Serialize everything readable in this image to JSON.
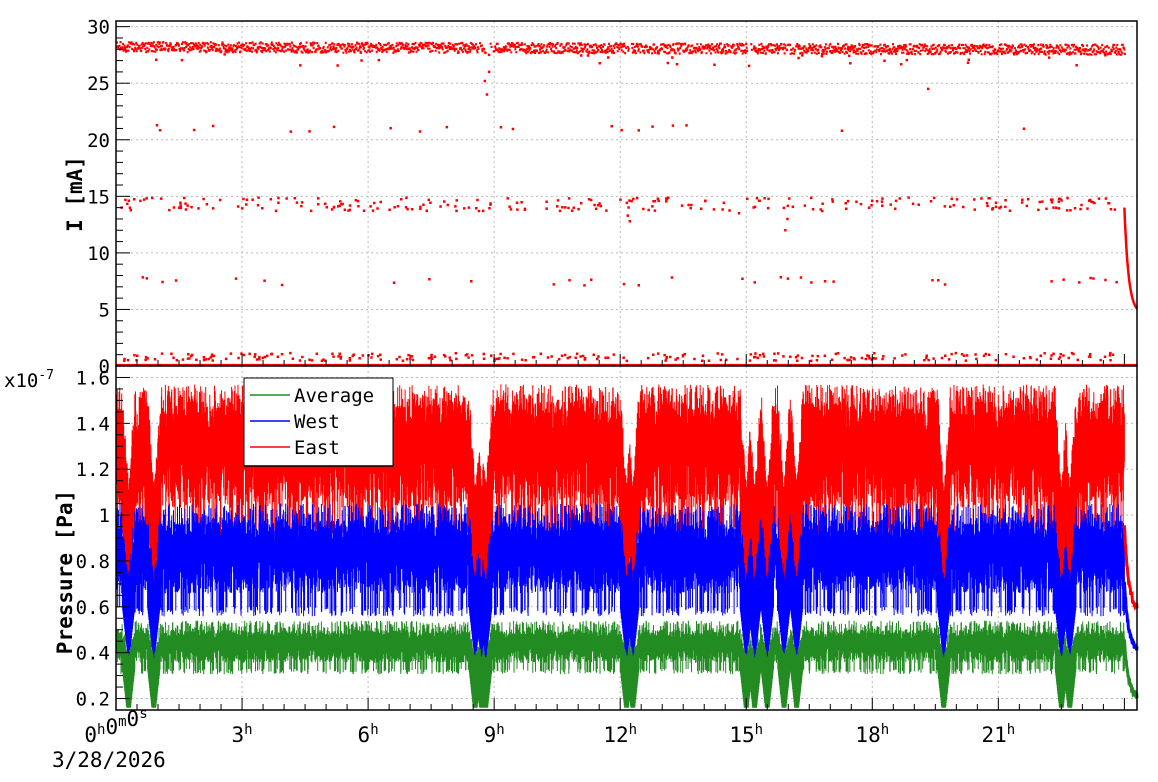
{
  "chart_data": [
    {
      "type": "scatter",
      "ylabel": "I [mA]",
      "ylim": [
        0,
        30.5
      ],
      "yticks": [
        "0",
        "5",
        "10",
        "15",
        "20",
        "25",
        "30"
      ],
      "grid": true,
      "x_unit": "hours",
      "xlim": [
        0,
        24.3
      ],
      "series": [
        {
          "color": "#ff0000",
          "description_levels": [
            28,
            14.5,
            7.5,
            0.8,
            0
          ],
          "segments": [
            {
              "x": [
                0.0,
                8.6
              ],
              "level": 28.2
            },
            {
              "x": [
                8.6,
                9.0
              ],
              "level": 27.5
            },
            {
              "x": [
                9.0,
                24.0
              ],
              "level": 28.0
            }
          ],
          "decay": {
            "x": [
              24.0,
              24.3
            ],
            "y": [
              14,
              4.6
            ]
          }
        }
      ]
    },
    {
      "type": "line",
      "ylabel": "Pressure [Pa]",
      "ylim": [
        0.15,
        1.65
      ],
      "yticks": [
        "0.2",
        "0.4",
        "0.6",
        "0.8",
        "1",
        "1.2",
        "1.4",
        "1.6"
      ],
      "y_exponent": "x10",
      "y_exponent_power": "-7",
      "grid": true,
      "legend": {
        "position": "top-left",
        "entries": [
          "Average",
          "West",
          "East"
        ]
      },
      "series": [
        {
          "name": "Average",
          "color": "#228b22",
          "typical_range": [
            0.32,
            0.52
          ]
        },
        {
          "name": "West",
          "color": "#0000ff",
          "typical_range": [
            0.6,
            1.05
          ]
        },
        {
          "name": "East",
          "color": "#ff0000",
          "typical_range": [
            1.0,
            1.55
          ]
        }
      ],
      "dips_hours": [
        0.3,
        0.9,
        8.55,
        8.7,
        8.8,
        12.15,
        12.3,
        15.0,
        15.2,
        15.5,
        15.9,
        16.2,
        19.7,
        22.5,
        22.7
      ],
      "end_decay": {
        "x": [
          24.0,
          24.3
        ],
        "East": [
          0.95,
          0.58
        ],
        "West": [
          0.7,
          0.4
        ],
        "Average": [
          0.45,
          0.2
        ]
      }
    }
  ],
  "xaxis": {
    "ticks": [
      {
        "hours": 0,
        "base": "0",
        "label_parts": [
          {
            "t": "0",
            "s": "h"
          },
          {
            "t": "0",
            "s": "m"
          },
          {
            "t": "0",
            "s": "s"
          }
        ]
      },
      {
        "hours": 3,
        "base": "3",
        "sup": "h"
      },
      {
        "hours": 6,
        "base": "6",
        "sup": "h"
      },
      {
        "hours": 9,
        "base": "9",
        "sup": "h"
      },
      {
        "hours": 12,
        "base": "12",
        "sup": "h"
      },
      {
        "hours": 15,
        "base": "15",
        "sup": "h"
      },
      {
        "hours": 18,
        "base": "18",
        "sup": "h"
      },
      {
        "hours": 21,
        "base": "21",
        "sup": "h"
      }
    ],
    "date": "3/28/2026"
  }
}
